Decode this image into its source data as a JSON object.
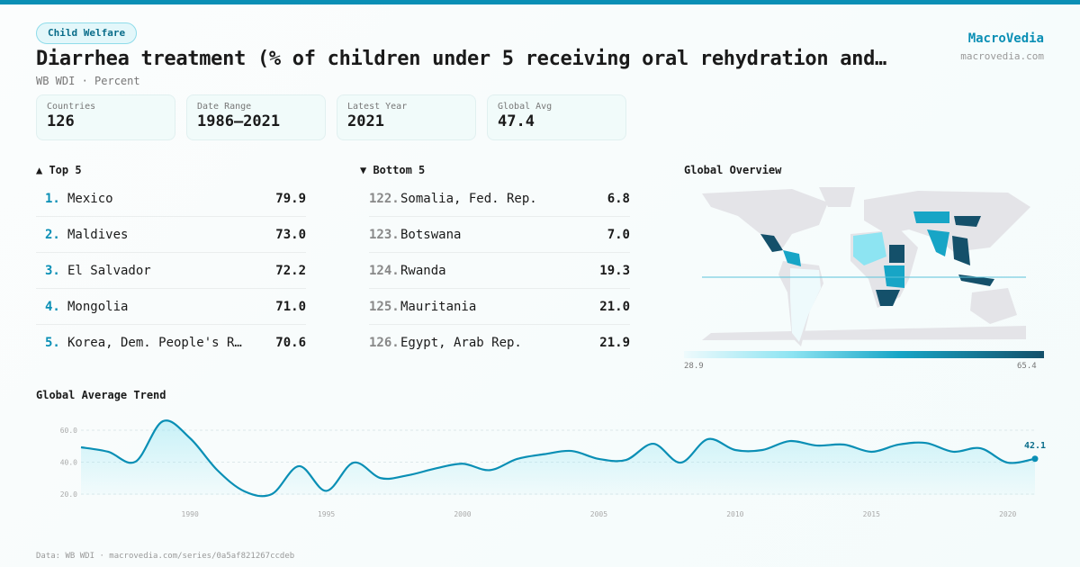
{
  "badge": "Child Welfare",
  "title": "Diarrhea treatment (% of children under 5 receiving oral rehydration and…",
  "subtitle": "WB WDI · Percent",
  "brand": {
    "name": "MacroVedia",
    "url": "macrovedia.com"
  },
  "stats": [
    {
      "label": "Countries",
      "value": "126"
    },
    {
      "label": "Date Range",
      "value": "1986–2021"
    },
    {
      "label": "Latest Year",
      "value": "2021"
    },
    {
      "label": "Global Avg",
      "value": "47.4"
    }
  ],
  "top": {
    "heading": "▲ Top 5",
    "items": [
      {
        "rank": "1.",
        "name": "Mexico",
        "value": "79.9"
      },
      {
        "rank": "2.",
        "name": "Maldives",
        "value": "73.0"
      },
      {
        "rank": "3.",
        "name": "El Salvador",
        "value": "72.2"
      },
      {
        "rank": "4.",
        "name": "Mongolia",
        "value": "71.0"
      },
      {
        "rank": "5.",
        "name": "Korea, Dem. People's R…",
        "value": "70.6"
      }
    ]
  },
  "bottom": {
    "heading": "▼ Bottom 5",
    "items": [
      {
        "rank": "122.",
        "name": "Somalia, Fed. Rep.",
        "value": "6.8"
      },
      {
        "rank": "123.",
        "name": "Botswana",
        "value": "7.0"
      },
      {
        "rank": "124.",
        "name": "Rwanda",
        "value": "19.3"
      },
      {
        "rank": "125.",
        "name": "Mauritania",
        "value": "21.0"
      },
      {
        "rank": "126.",
        "name": "Egypt, Arab Rep.",
        "value": "21.9"
      }
    ]
  },
  "map": {
    "heading": "Global Overview",
    "legend_min": "28.9",
    "legend_max": "65.4",
    "colors": [
      "#eefafc",
      "#8de4f2",
      "#17a5c6",
      "#14506a"
    ]
  },
  "chart_data": {
    "type": "area",
    "title": "Global Average Trend",
    "x": [
      1986,
      1987,
      1988,
      1989,
      1990,
      1991,
      1992,
      1993,
      1994,
      1995,
      1996,
      1997,
      1998,
      1999,
      2000,
      2001,
      2002,
      2003,
      2004,
      2005,
      2006,
      2007,
      2008,
      2009,
      2010,
      2011,
      2012,
      2013,
      2014,
      2015,
      2016,
      2017,
      2018,
      2019,
      2020,
      2021
    ],
    "y": [
      49.3,
      46.5,
      40.3,
      65.6,
      55,
      35,
      21.7,
      20,
      37.5,
      22,
      39.7,
      30,
      31.8,
      36,
      39,
      35,
      42,
      45,
      47,
      42,
      41.4,
      51.5,
      39.7,
      54.4,
      47.6,
      47.6,
      53.2,
      50.4,
      51,
      46.5,
      51,
      52,
      46.5,
      48.7,
      39.7,
      42.1
    ],
    "xticks": [
      1990,
      1995,
      2000,
      2005,
      2010,
      2015,
      2020
    ],
    "yticks": [
      "20.0",
      "40.0",
      "60.0"
    ],
    "ylim": [
      10,
      70
    ],
    "last_label": "42.1",
    "color": "#0a8fb5",
    "grid": true
  },
  "footer": "Data: WB WDI · macrovedia.com/series/0a5af821267ccdeb"
}
